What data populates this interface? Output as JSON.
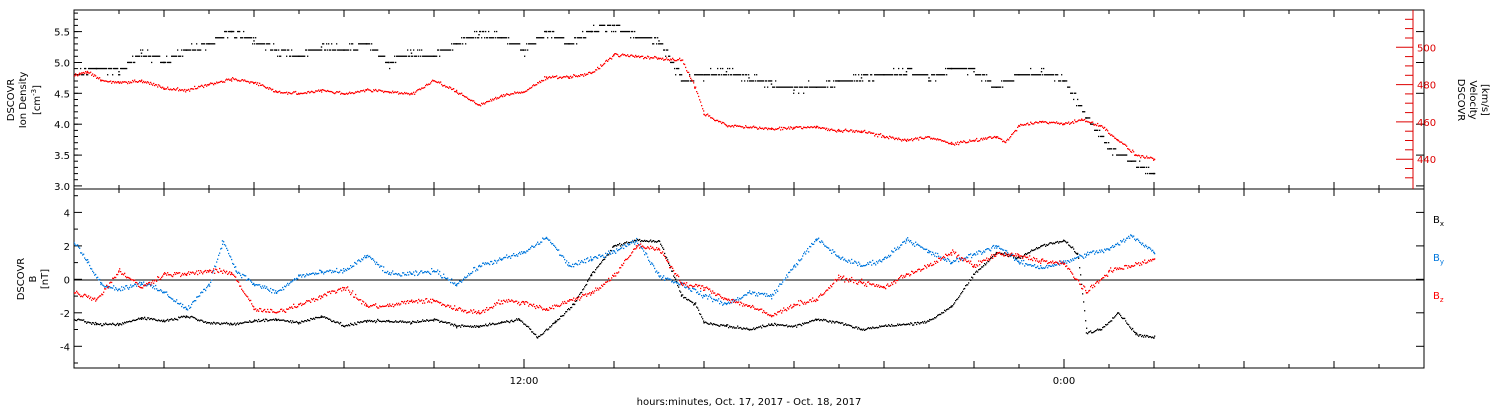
{
  "xaxis": {
    "label": "hours:minutes, Oct. 17, 2017 - Oct. 18, 2017",
    "range_hours": [
      2.0,
      32.0
    ],
    "ticks": [
      {
        "h": 12,
        "label": "12:00"
      },
      {
        "h": 24,
        "label": "0:00"
      }
    ]
  },
  "colors": {
    "black": "#000000",
    "red": "#ff0000",
    "blue": "#0077dd",
    "axis_red": "#dd0000"
  },
  "chart_data": [
    {
      "type": "scatter",
      "panel": "top",
      "ylabel": [
        "DSCOVR",
        "Ion Density",
        "[cm",
        "-3",
        "]"
      ],
      "ylim": [
        2.95,
        5.85
      ],
      "yticks": [
        {
          "v": 3.0,
          "label": "3.0"
        },
        {
          "v": 3.5,
          "label": "3.5"
        },
        {
          "v": 4.0,
          "label": "4.0"
        },
        {
          "v": 4.5,
          "label": "4.5"
        },
        {
          "v": 5.0,
          "label": "5.0"
        },
        {
          "v": 5.5,
          "label": "5.5"
        }
      ],
      "y2label": [
        "DSCOVR",
        "Velocity",
        "[km/s]"
      ],
      "y2lim": [
        424,
        520
      ],
      "y2ticks": [
        {
          "v": 440,
          "label": "440"
        },
        {
          "v": 460,
          "label": "460"
        },
        {
          "v": 480,
          "label": "480"
        },
        {
          "v": 500,
          "label": "500"
        }
      ],
      "series": [
        {
          "name": "Ion Density",
          "color": "black",
          "axis": "left",
          "x": [
            2.0,
            2.5,
            3.0,
            3.5,
            4.0,
            4.5,
            5.0,
            5.5,
            6.0,
            6.5,
            7.0,
            7.5,
            8.0,
            8.5,
            9.0,
            9.5,
            10.0,
            10.5,
            11.0,
            11.5,
            12.0,
            12.5,
            13.0,
            13.5,
            14.0,
            14.5,
            15.0,
            15.5,
            16.0,
            16.5,
            17.0,
            17.5,
            18.0,
            18.5,
            19.0,
            19.5,
            20.0,
            20.5,
            21.0,
            21.5,
            22.0,
            22.5,
            23.0,
            23.5,
            24.0,
            24.5,
            25.0,
            25.5,
            26.0
          ],
          "y": [
            4.8,
            4.9,
            4.85,
            5.15,
            5.0,
            5.2,
            5.3,
            5.5,
            5.35,
            5.2,
            5.1,
            5.25,
            5.2,
            5.3,
            5.0,
            5.15,
            5.1,
            5.3,
            5.45,
            5.4,
            5.2,
            5.5,
            5.3,
            5.5,
            5.6,
            5.4,
            5.35,
            4.7,
            4.8,
            4.85,
            4.75,
            4.65,
            4.55,
            4.6,
            4.7,
            4.75,
            4.8,
            4.85,
            4.75,
            4.9,
            4.85,
            4.6,
            4.8,
            4.85,
            4.7,
            4.1,
            3.6,
            3.4,
            3.2
          ]
        },
        {
          "name": "Velocity",
          "color": "red",
          "axis": "right",
          "x": [
            2.0,
            2.3,
            2.6,
            3.0,
            3.5,
            4.0,
            4.5,
            5.0,
            5.5,
            6.0,
            6.5,
            7.0,
            7.5,
            8.0,
            8.5,
            9.0,
            9.5,
            10.0,
            10.5,
            11.0,
            11.5,
            12.0,
            12.5,
            13.0,
            13.5,
            14.0,
            14.5,
            15.0,
            15.5,
            15.8,
            16.0,
            16.5,
            17.0,
            17.5,
            18.0,
            18.5,
            19.0,
            19.5,
            20.0,
            20.5,
            21.0,
            21.5,
            22.0,
            22.5,
            22.7,
            23.0,
            23.5,
            24.0,
            24.4,
            24.8,
            25.2,
            25.6,
            26.0
          ],
          "y": [
            485,
            487,
            482,
            481,
            482,
            478,
            477,
            480,
            483,
            481,
            476,
            475,
            477,
            475,
            477,
            476,
            475,
            482,
            476,
            469,
            474,
            476,
            484,
            484,
            486,
            496,
            495,
            494,
            493,
            478,
            464,
            458,
            457,
            456,
            457,
            457,
            455,
            455,
            452,
            450,
            452,
            448,
            450,
            452,
            449,
            458,
            460,
            459,
            461,
            458,
            450,
            442,
            440
          ]
        }
      ]
    },
    {
      "type": "scatter",
      "panel": "bottom",
      "ylabel": [
        "DSCOVR",
        "B",
        "[nT]"
      ],
      "ylim": [
        -5.3,
        5.4
      ],
      "yticks": [
        {
          "v": -4,
          "label": "-4"
        },
        {
          "v": -2,
          "label": "-2"
        },
        {
          "v": 0,
          "label": "0"
        },
        {
          "v": 2,
          "label": "2"
        },
        {
          "v": 4,
          "label": "4"
        }
      ],
      "zero_line": true,
      "legend": [
        {
          "label": "B",
          "sub": "x",
          "color": "black"
        },
        {
          "label": "B",
          "sub": "y",
          "color": "blue"
        },
        {
          "label": "B",
          "sub": "z",
          "color": "red"
        }
      ],
      "series": [
        {
          "name": "Bx",
          "color": "black",
          "x": [
            2.0,
            2.5,
            3.0,
            3.5,
            4.0,
            4.5,
            5.0,
            5.5,
            6.0,
            6.5,
            7.0,
            7.5,
            8.0,
            8.5,
            9.0,
            9.5,
            10.0,
            10.5,
            11.0,
            11.5,
            11.9,
            12.3,
            12.7,
            13.1,
            13.5,
            14.0,
            14.5,
            15.0,
            15.5,
            15.8,
            16.0,
            16.5,
            17.0,
            17.5,
            18.0,
            18.5,
            19.0,
            19.5,
            20.0,
            20.5,
            21.0,
            21.5,
            22.0,
            22.5,
            23.0,
            23.5,
            24.0,
            24.3,
            24.5,
            24.8,
            25.2,
            25.6,
            26.0
          ],
          "y": [
            -2.4,
            -2.7,
            -2.7,
            -2.3,
            -2.5,
            -2.2,
            -2.6,
            -2.7,
            -2.5,
            -2.4,
            -2.6,
            -2.2,
            -2.8,
            -2.5,
            -2.5,
            -2.6,
            -2.4,
            -2.8,
            -2.8,
            -2.6,
            -2.4,
            -3.5,
            -2.5,
            -1.5,
            0.3,
            2.0,
            2.3,
            2.3,
            -1.0,
            -1.5,
            -2.6,
            -2.8,
            -3.0,
            -2.7,
            -2.8,
            -2.4,
            -2.6,
            -3.0,
            -2.8,
            -2.7,
            -2.5,
            -1.6,
            0.3,
            1.6,
            1.3,
            2.0,
            2.3,
            1.5,
            -3.2,
            -3.0,
            -2.0,
            -3.3,
            -3.5
          ]
        },
        {
          "name": "By",
          "color": "blue",
          "x": [
            2.0,
            2.3,
            2.6,
            3.0,
            3.5,
            4.0,
            4.5,
            5.0,
            5.3,
            5.6,
            6.0,
            6.5,
            7.0,
            7.5,
            8.0,
            8.5,
            9.0,
            9.5,
            10.0,
            10.5,
            11.0,
            11.5,
            12.0,
            12.5,
            13.0,
            13.5,
            14.0,
            14.5,
            15.0,
            15.5,
            16.0,
            16.5,
            17.0,
            17.5,
            18.0,
            18.5,
            19.0,
            19.5,
            20.0,
            20.5,
            21.0,
            21.5,
            22.0,
            22.5,
            23.0,
            23.5,
            24.0,
            24.5,
            25.0,
            25.5,
            26.0
          ],
          "y": [
            2.2,
            1.0,
            -0.3,
            -0.6,
            -0.2,
            -0.8,
            -1.8,
            -0.3,
            2.3,
            0.5,
            -0.3,
            -0.8,
            0.2,
            0.4,
            0.5,
            1.4,
            0.3,
            0.3,
            0.5,
            -0.3,
            0.8,
            1.2,
            1.6,
            2.5,
            0.8,
            1.2,
            1.7,
            2.3,
            0.2,
            -0.3,
            -1.0,
            -1.5,
            -0.8,
            -1.0,
            0.8,
            2.4,
            1.3,
            0.8,
            1.2,
            2.4,
            1.6,
            1.0,
            1.5,
            2.0,
            1.0,
            0.7,
            1.0,
            1.5,
            1.8,
            2.6,
            1.6
          ]
        },
        {
          "name": "Bz",
          "color": "red",
          "x": [
            2.0,
            2.5,
            3.0,
            3.5,
            4.0,
            4.5,
            5.0,
            5.5,
            6.0,
            6.5,
            7.0,
            7.5,
            8.0,
            8.5,
            9.0,
            9.5,
            10.0,
            10.5,
            11.0,
            11.5,
            12.0,
            12.5,
            13.0,
            13.5,
            14.0,
            14.5,
            15.0,
            15.5,
            16.0,
            16.5,
            17.0,
            17.5,
            18.0,
            18.5,
            19.0,
            19.5,
            20.0,
            20.5,
            21.0,
            21.5,
            22.0,
            22.5,
            23.0,
            23.5,
            24.0,
            24.5,
            25.0,
            25.5,
            26.0
          ],
          "y": [
            -0.8,
            -1.2,
            0.5,
            -0.5,
            0.3,
            0.3,
            0.5,
            0.4,
            -1.8,
            -2.0,
            -1.5,
            -1.0,
            -0.5,
            -1.6,
            -1.6,
            -1.3,
            -1.3,
            -1.8,
            -2.0,
            -1.3,
            -1.4,
            -1.8,
            -1.3,
            -0.8,
            0.2,
            2.0,
            1.8,
            -0.3,
            -0.5,
            -1.2,
            -1.6,
            -2.2,
            -1.5,
            -1.2,
            0.1,
            -0.2,
            -0.5,
            0.3,
            0.8,
            1.6,
            0.8,
            1.5,
            1.4,
            1.1,
            0.9,
            -0.8,
            0.5,
            0.8,
            1.2
          ]
        }
      ]
    }
  ]
}
